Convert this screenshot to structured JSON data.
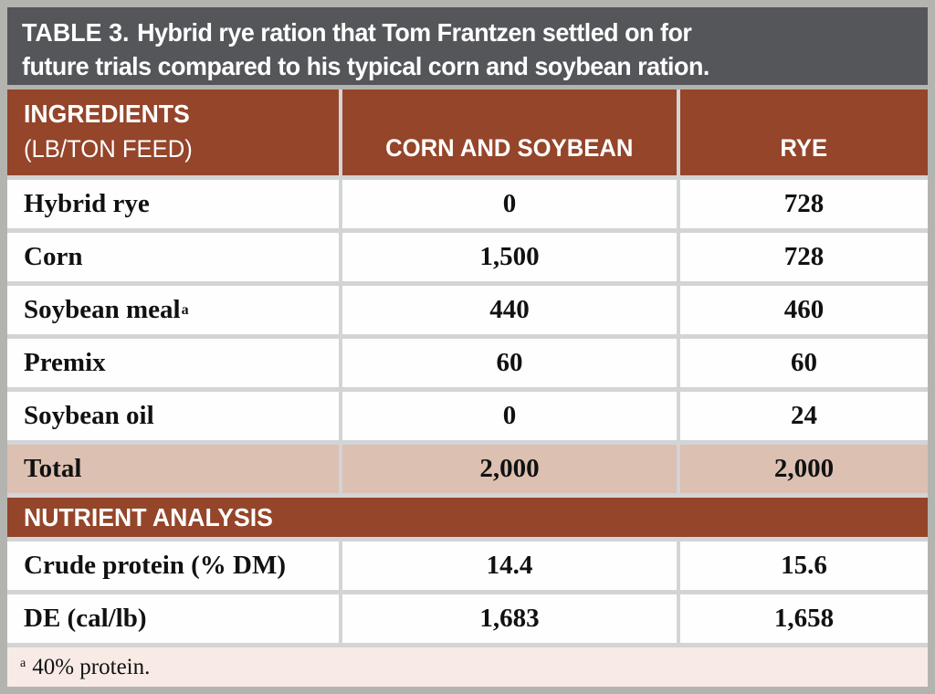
{
  "title": {
    "label": "TABLE 3.",
    "line1": "Hybrid rye ration that Tom Frantzen settled on for",
    "line2": "future trials compared to his typical corn and soybean ration."
  },
  "table": {
    "header": {
      "col1_line1": "INGREDIENTS",
      "col1_line2": "(LB/TON FEED)",
      "col2": "CORN AND SOYBEAN",
      "col3": "RYE"
    },
    "ingredient_rows": [
      {
        "label": "Hybrid rye",
        "corn_soybean": "0",
        "rye": "728"
      },
      {
        "label": "Corn",
        "corn_soybean": "1,500",
        "rye": "728"
      },
      {
        "label": "Soybean meal",
        "sup": "a",
        "corn_soybean": "440",
        "rye": "460"
      },
      {
        "label": "Premix",
        "corn_soybean": "60",
        "rye": "60"
      },
      {
        "label": "Soybean oil",
        "corn_soybean": "0",
        "rye": "24"
      }
    ],
    "total_row": {
      "label": "Total",
      "corn_soybean": "2,000",
      "rye": "2,000"
    },
    "section_header": "NUTRIENT ANALYSIS",
    "nutrient_rows": [
      {
        "label": "Crude protein (% DM)",
        "corn_soybean": "14.4",
        "rye": "15.6"
      },
      {
        "label": "DE (cal/lb)",
        "corn_soybean": "1,683",
        "rye": "1,658"
      }
    ],
    "footnote": {
      "sup": "a",
      "text": "40% protein."
    }
  },
  "colors": {
    "title_bar_bg": "#55565a",
    "header_brown": "#94452a",
    "total_row_bg": "#dcc0b2",
    "footnote_bg": "#f8ebe6",
    "divider_gray": "#d3d4d6",
    "outer_border_gray": "#b3b4b0"
  }
}
